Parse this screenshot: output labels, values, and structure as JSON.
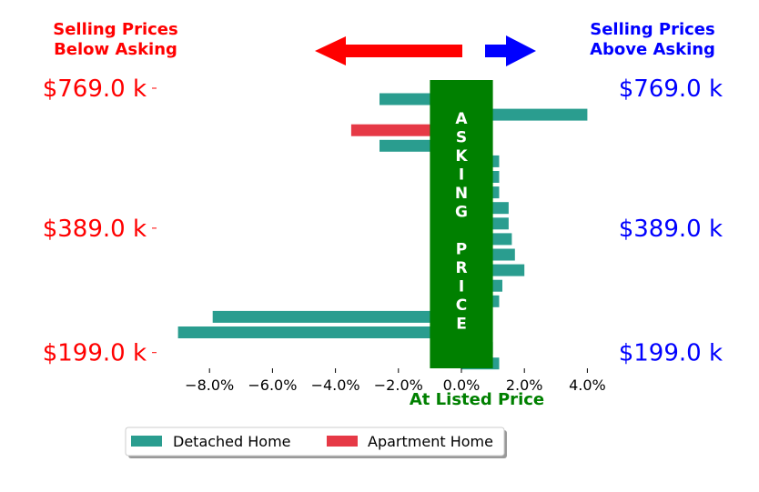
{
  "chart_data": {
    "type": "bar",
    "orientation": "horizontal",
    "x_axis_label": "At Listed Price",
    "x_ticks": [
      "−8.0%",
      "−6.0%",
      "−4.0%",
      "−2.0%",
      "0.0%",
      "2.0%",
      "4.0%"
    ],
    "x_tick_values": [
      -8,
      -6,
      -4,
      -2,
      0,
      2,
      4
    ],
    "xlim": [
      -9.5,
      4.5
    ],
    "y_tick_labels": [
      "$769.0 k",
      "$389.0 k",
      "$199.0 k"
    ],
    "y_tick_rows": [
      0,
      9,
      17
    ],
    "header_left": [
      "Selling Prices",
      "Below Asking"
    ],
    "header_right": [
      "Selling Prices",
      "Above Asking"
    ],
    "center_band_text": "A S K I N G  P R I C E",
    "center_band_letters": [
      "A",
      "S",
      "K",
      "I",
      "N",
      "G",
      "",
      "P",
      "R",
      "I",
      "C",
      "E"
    ],
    "center_band_range": [
      -1.0,
      1.0
    ],
    "legend": [
      {
        "name": "Detached Home",
        "color": "#2a9d8f"
      },
      {
        "name": "Apartment Home",
        "color": "#e63946"
      }
    ],
    "colors": {
      "left_labels": "#ff0000",
      "right_labels": "#0000ff",
      "center_band": "#008000",
      "arrow_left": "#ff0000",
      "arrow_right": "#0000ff"
    },
    "bars": [
      {
        "row": 0,
        "value": -2.6,
        "series": "Detached Home"
      },
      {
        "row": 1,
        "value": 4.0,
        "series": "Detached Home"
      },
      {
        "row": 2,
        "value": -3.5,
        "series": "Apartment Home"
      },
      {
        "row": 3,
        "value": -2.6,
        "series": "Detached Home"
      },
      {
        "row": 4,
        "value": 1.2,
        "series": "Detached Home"
      },
      {
        "row": 5,
        "value": 1.2,
        "series": "Detached Home"
      },
      {
        "row": 6,
        "value": 1.2,
        "series": "Detached Home"
      },
      {
        "row": 7,
        "value": 1.5,
        "series": "Detached Home"
      },
      {
        "row": 8,
        "value": 1.5,
        "series": "Detached Home"
      },
      {
        "row": 9,
        "value": 1.6,
        "series": "Detached Home"
      },
      {
        "row": 10,
        "value": 1.7,
        "series": "Detached Home"
      },
      {
        "row": 11,
        "value": 2.0,
        "series": "Detached Home"
      },
      {
        "row": 12,
        "value": 1.3,
        "series": "Detached Home"
      },
      {
        "row": 13,
        "value": 1.2,
        "series": "Detached Home"
      },
      {
        "row": 14,
        "value": -7.9,
        "series": "Detached Home"
      },
      {
        "row": 15,
        "value": -9.0,
        "series": "Detached Home"
      },
      {
        "row": 16,
        "value": 1.0,
        "series": "Detached Home"
      },
      {
        "row": 17,
        "value": 1.2,
        "series": "Detached Home"
      }
    ]
  }
}
